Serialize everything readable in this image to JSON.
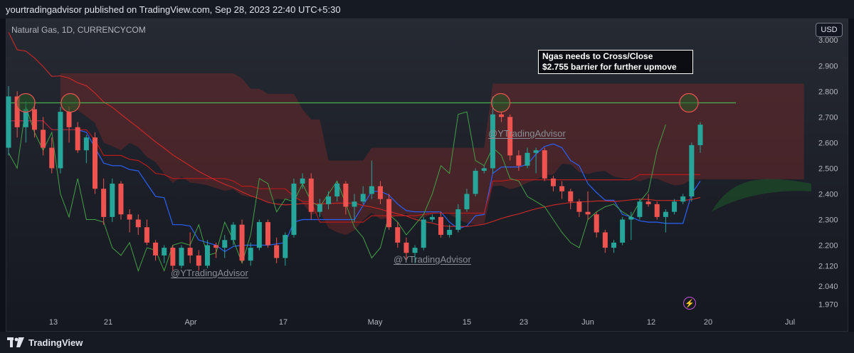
{
  "header": {
    "publisher_text": "yourtradingadvisor published on TradingView.com, Sep 28, 2023 22:40 UTC+5:30"
  },
  "symbol_label": "Natural Gas, 1D, CURRENCYCOM",
  "currency_button": "USD",
  "annotation": {
    "line1": "Ngas needs to Cross/Close",
    "line2": "$2.755 barrier for further upmove"
  },
  "watermarks": [
    "@YTradingAdvisor",
    "@YTradingAdvisor",
    "@YTradingAdvisor"
  ],
  "footer": {
    "brand": "TradingView"
  },
  "colors": {
    "up": "#26a69a",
    "down": "#ef5350",
    "barrier_line": "#4caf50",
    "tenkan": "#2962ff",
    "kijun": "#b71c1c",
    "chikou": "#43a047",
    "cloud_bear": "#7a2a2a",
    "cloud_bull": "#1e5a2a",
    "ma": "#c62828"
  },
  "chart_data": {
    "type": "candlestick",
    "title": "Natural Gas, 1D, CURRENCYCOM",
    "ylim": [
      1.935,
      3.045
    ],
    "y_ticks": [
      1.97,
      2.04,
      2.12,
      2.2,
      2.3,
      2.4,
      2.5,
      2.6,
      2.7,
      2.8,
      2.9,
      3.0
    ],
    "x_ticks": [
      "13",
      "21",
      "Apr",
      "17",
      "May",
      "15",
      "23",
      "Jun",
      "12",
      "20",
      "Jul"
    ],
    "barrier_level": 2.755,
    "candles": [
      {
        "o": 2.58,
        "h": 2.82,
        "l": 2.55,
        "c": 2.78
      },
      {
        "o": 2.78,
        "h": 2.8,
        "l": 2.62,
        "c": 2.66
      },
      {
        "o": 2.66,
        "h": 2.76,
        "l": 2.6,
        "c": 2.73
      },
      {
        "o": 2.73,
        "h": 2.76,
        "l": 2.62,
        "c": 2.65
      },
      {
        "o": 2.65,
        "h": 2.7,
        "l": 2.55,
        "c": 2.58
      },
      {
        "o": 2.58,
        "h": 2.62,
        "l": 2.48,
        "c": 2.5
      },
      {
        "o": 2.5,
        "h": 2.74,
        "l": 2.48,
        "c": 2.72
      },
      {
        "o": 2.72,
        "h": 2.74,
        "l": 2.6,
        "c": 2.66
      },
      {
        "o": 2.66,
        "h": 2.68,
        "l": 2.56,
        "c": 2.57
      },
      {
        "o": 2.57,
        "h": 2.63,
        "l": 2.52,
        "c": 2.62
      },
      {
        "o": 2.62,
        "h": 2.64,
        "l": 2.4,
        "c": 2.42
      },
      {
        "o": 2.42,
        "h": 2.46,
        "l": 2.28,
        "c": 2.31
      },
      {
        "o": 2.31,
        "h": 2.46,
        "l": 2.29,
        "c": 2.44
      },
      {
        "o": 2.44,
        "h": 2.45,
        "l": 2.3,
        "c": 2.32
      },
      {
        "o": 2.32,
        "h": 2.34,
        "l": 2.25,
        "c": 2.3
      },
      {
        "o": 2.3,
        "h": 2.32,
        "l": 2.24,
        "c": 2.27
      },
      {
        "o": 2.27,
        "h": 2.3,
        "l": 2.2,
        "c": 2.21
      },
      {
        "o": 2.21,
        "h": 2.22,
        "l": 2.14,
        "c": 2.16
      },
      {
        "o": 2.16,
        "h": 2.2,
        "l": 2.13,
        "c": 2.19
      },
      {
        "o": 2.19,
        "h": 2.2,
        "l": 2.1,
        "c": 2.12
      },
      {
        "o": 2.12,
        "h": 2.2,
        "l": 2.11,
        "c": 2.19
      },
      {
        "o": 2.19,
        "h": 2.25,
        "l": 2.13,
        "c": 2.16
      },
      {
        "o": 2.16,
        "h": 2.18,
        "l": 2.1,
        "c": 2.12
      },
      {
        "o": 2.12,
        "h": 2.22,
        "l": 2.11,
        "c": 2.2
      },
      {
        "o": 2.2,
        "h": 2.21,
        "l": 2.15,
        "c": 2.19
      },
      {
        "o": 2.19,
        "h": 2.24,
        "l": 2.15,
        "c": 2.22
      },
      {
        "o": 2.22,
        "h": 2.29,
        "l": 2.2,
        "c": 2.28
      },
      {
        "o": 2.28,
        "h": 2.3,
        "l": 2.13,
        "c": 2.14
      },
      {
        "o": 2.14,
        "h": 2.21,
        "l": 2.12,
        "c": 2.19
      },
      {
        "o": 2.19,
        "h": 2.3,
        "l": 2.18,
        "c": 2.29
      },
      {
        "o": 2.29,
        "h": 2.3,
        "l": 2.19,
        "c": 2.2
      },
      {
        "o": 2.2,
        "h": 2.23,
        "l": 2.13,
        "c": 2.15
      },
      {
        "o": 2.15,
        "h": 2.25,
        "l": 2.12,
        "c": 2.24
      },
      {
        "o": 2.24,
        "h": 2.46,
        "l": 2.23,
        "c": 2.44
      },
      {
        "o": 2.44,
        "h": 2.48,
        "l": 2.42,
        "c": 2.46
      },
      {
        "o": 2.46,
        "h": 2.48,
        "l": 2.3,
        "c": 2.33
      },
      {
        "o": 2.33,
        "h": 2.38,
        "l": 2.31,
        "c": 2.36
      },
      {
        "o": 2.36,
        "h": 2.41,
        "l": 2.34,
        "c": 2.39
      },
      {
        "o": 2.39,
        "h": 2.45,
        "l": 2.37,
        "c": 2.44
      },
      {
        "o": 2.44,
        "h": 2.45,
        "l": 2.32,
        "c": 2.35
      },
      {
        "o": 2.35,
        "h": 2.4,
        "l": 2.29,
        "c": 2.37
      },
      {
        "o": 2.37,
        "h": 2.43,
        "l": 2.36,
        "c": 2.4
      },
      {
        "o": 2.4,
        "h": 2.53,
        "l": 2.38,
        "c": 2.43
      },
      {
        "o": 2.43,
        "h": 2.45,
        "l": 2.36,
        "c": 2.38
      },
      {
        "o": 2.38,
        "h": 2.4,
        "l": 2.26,
        "c": 2.27
      },
      {
        "o": 2.27,
        "h": 2.29,
        "l": 2.19,
        "c": 2.21
      },
      {
        "o": 2.21,
        "h": 2.23,
        "l": 2.14,
        "c": 2.17
      },
      {
        "o": 2.17,
        "h": 2.2,
        "l": 2.13,
        "c": 2.19
      },
      {
        "o": 2.19,
        "h": 2.31,
        "l": 2.18,
        "c": 2.3
      },
      {
        "o": 2.3,
        "h": 2.32,
        "l": 2.29,
        "c": 2.31
      },
      {
        "o": 2.31,
        "h": 2.33,
        "l": 2.23,
        "c": 2.24
      },
      {
        "o": 2.24,
        "h": 2.28,
        "l": 2.23,
        "c": 2.26
      },
      {
        "o": 2.26,
        "h": 2.36,
        "l": 2.25,
        "c": 2.34
      },
      {
        "o": 2.34,
        "h": 2.42,
        "l": 2.33,
        "c": 2.4
      },
      {
        "o": 2.4,
        "h": 2.5,
        "l": 2.39,
        "c": 2.49
      },
      {
        "o": 2.49,
        "h": 2.51,
        "l": 2.48,
        "c": 2.5
      },
      {
        "o": 2.5,
        "h": 2.78,
        "l": 2.48,
        "c": 2.71
      },
      {
        "o": 2.71,
        "h": 2.72,
        "l": 2.68,
        "c": 2.7
      },
      {
        "o": 2.7,
        "h": 2.71,
        "l": 2.53,
        "c": 2.55
      },
      {
        "o": 2.55,
        "h": 2.57,
        "l": 2.49,
        "c": 2.51
      },
      {
        "o": 2.51,
        "h": 2.58,
        "l": 2.5,
        "c": 2.56
      },
      {
        "o": 2.56,
        "h": 2.58,
        "l": 2.48,
        "c": 2.57
      },
      {
        "o": 2.57,
        "h": 2.58,
        "l": 2.45,
        "c": 2.46
      },
      {
        "o": 2.46,
        "h": 2.47,
        "l": 2.41,
        "c": 2.43
      },
      {
        "o": 2.43,
        "h": 2.45,
        "l": 2.38,
        "c": 2.41
      },
      {
        "o": 2.41,
        "h": 2.42,
        "l": 2.34,
        "c": 2.37
      },
      {
        "o": 2.37,
        "h": 2.38,
        "l": 2.31,
        "c": 2.33
      },
      {
        "o": 2.33,
        "h": 2.41,
        "l": 2.3,
        "c": 2.32
      },
      {
        "o": 2.32,
        "h": 2.33,
        "l": 2.23,
        "c": 2.25
      },
      {
        "o": 2.25,
        "h": 2.26,
        "l": 2.17,
        "c": 2.19
      },
      {
        "o": 2.19,
        "h": 2.22,
        "l": 2.17,
        "c": 2.21
      },
      {
        "o": 2.21,
        "h": 2.31,
        "l": 2.2,
        "c": 2.3
      },
      {
        "o": 2.3,
        "h": 2.33,
        "l": 2.22,
        "c": 2.31
      },
      {
        "o": 2.31,
        "h": 2.38,
        "l": 2.3,
        "c": 2.37
      },
      {
        "o": 2.37,
        "h": 2.4,
        "l": 2.35,
        "c": 2.36
      },
      {
        "o": 2.36,
        "h": 2.37,
        "l": 2.3,
        "c": 2.31
      },
      {
        "o": 2.31,
        "h": 2.34,
        "l": 2.25,
        "c": 2.33
      },
      {
        "o": 2.33,
        "h": 2.38,
        "l": 2.32,
        "c": 2.37
      },
      {
        "o": 2.37,
        "h": 2.4,
        "l": 2.36,
        "c": 2.39
      },
      {
        "o": 2.39,
        "h": 2.6,
        "l": 2.37,
        "c": 2.59
      },
      {
        "o": 2.59,
        "h": 2.68,
        "l": 2.56,
        "c": 2.67
      }
    ]
  }
}
